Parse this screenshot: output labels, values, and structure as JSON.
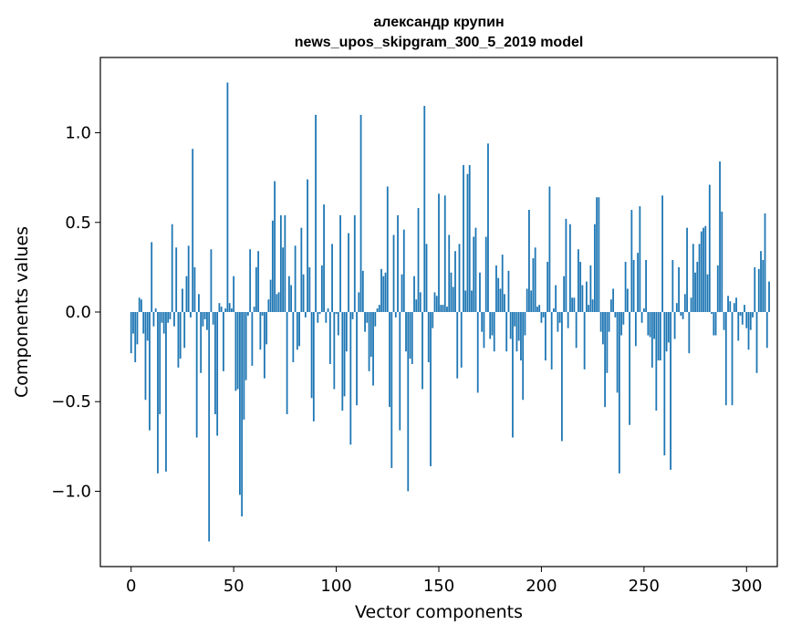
{
  "chart_data": {
    "type": "bar",
    "title_line1": "александр крупин",
    "title_line2": "news_upos_skipgram_300_5_2019 model",
    "xlabel": "Vector components",
    "ylabel": "Components values",
    "xlim": [
      -15,
      315
    ],
    "ylim": [
      -1.42,
      1.42
    ],
    "xticks": [
      0,
      50,
      100,
      150,
      200,
      250,
      300
    ],
    "xtick_labels": [
      "0",
      "50",
      "100",
      "150",
      "200",
      "250",
      "300"
    ],
    "yticks": [
      -1.0,
      -0.5,
      0.0,
      0.5,
      1.0
    ],
    "ytick_labels": [
      "−1.0",
      "−0.5",
      "0.0",
      "0.5",
      "1.0"
    ],
    "bar_color": "#1f77b4",
    "grid": false,
    "values": [
      -0.23,
      -0.12,
      -0.28,
      -0.18,
      0.08,
      0.07,
      -0.12,
      -0.49,
      -0.16,
      -0.66,
      0.39,
      -0.08,
      0.02,
      -0.9,
      -0.57,
      -0.06,
      -0.12,
      -0.89,
      -0.06,
      -0.04,
      0.49,
      -0.08,
      0.36,
      -0.31,
      -0.26,
      0.13,
      -0.2,
      0.2,
      0.37,
      -0.03,
      0.91,
      0.25,
      -0.7,
      0.1,
      -0.34,
      -0.08,
      -0.04,
      -0.1,
      -1.28,
      0.35,
      -0.07,
      -0.57,
      -0.69,
      0.05,
      0.03,
      -0.33,
      0.02,
      1.28,
      0.05,
      0.02,
      0.2,
      -0.44,
      -0.43,
      -1.02,
      -1.14,
      -0.6,
      -0.38,
      -0.02,
      0.35,
      -0.3,
      0.03,
      0.25,
      0.34,
      -0.21,
      -0.02,
      -0.37,
      -0.18,
      0.07,
      0.18,
      0.51,
      0.73,
      0.1,
      0.11,
      0.54,
      0.36,
      0.54,
      -0.57,
      0.2,
      0.15,
      -0.28,
      0.37,
      -0.21,
      -0.19,
      0.47,
      0.21,
      -0.03,
      0.74,
      0.25,
      -0.48,
      -0.61,
      1.1,
      -0.06,
      -0.01,
      0.26,
      0.6,
      -0.06,
      0.02,
      -0.29,
      0.38,
      -0.43,
      -0.01,
      -0.13,
      0.54,
      -0.55,
      -0.47,
      -0.22,
      0.44,
      -0.74,
      -0.04,
      0.54,
      -0.52,
      0.11,
      1.1,
      0.23,
      -0.11,
      -0.06,
      -0.33,
      -0.25,
      -0.41,
      -0.08,
      0.02,
      0.04,
      0.24,
      0.2,
      0.22,
      0.7,
      -0.53,
      -0.87,
      0.43,
      -0.03,
      0.54,
      -0.66,
      0.21,
      0.46,
      -0.22,
      -1.0,
      -0.26,
      -0.29,
      0.2,
      0.07,
      0.58,
      0.11,
      -0.43,
      1.15,
      0.38,
      -0.28,
      -0.86,
      -0.09,
      0.11,
      0.09,
      0.66,
      0.04,
      0.04,
      0.65,
      0.03,
      0.43,
      0.22,
      0.14,
      0.34,
      -0.37,
      0.38,
      -0.31,
      0.82,
      0.12,
      0.77,
      0.82,
      0.12,
      0.42,
      0.47,
      -0.45,
      0.22,
      -0.11,
      -0.2,
      0.42,
      0.94,
      -0.15,
      -0.13,
      -0.22,
      0.26,
      0.19,
      0.13,
      0.32,
      0.1,
      -0.22,
      0.23,
      -0.15,
      -0.7,
      -0.08,
      -0.22,
      -0.16,
      -0.27,
      -0.49,
      -0.13,
      0.13,
      0.57,
      0.12,
      0.3,
      0.36,
      0.03,
      0.04,
      -0.06,
      -0.03,
      -0.27,
      0.28,
      0.7,
      -0.32,
      0.02,
      0.15,
      -0.11,
      -0.06,
      -0.72,
      0.2,
      0.52,
      -0.09,
      0.49,
      0.08,
      0.08,
      -0.2,
      0.35,
      0.28,
      0.15,
      -0.32,
      0.17,
      0.04,
      0.26,
      0.07,
      0.49,
      0.64,
      0.64,
      -0.11,
      -0.18,
      -0.53,
      -0.34,
      -0.11,
      0.07,
      0.13,
      -0.03,
      -0.45,
      -0.9,
      -0.13,
      -0.07,
      0.28,
      0.13,
      -0.63,
      0.57,
      0.29,
      -0.19,
      0.33,
      0.59,
      -0.06,
      0.02,
      0.29,
      -0.13,
      -0.14,
      -0.31,
      -0.15,
      -0.55,
      -0.27,
      -0.27,
      0.65,
      -0.8,
      -0.22,
      -0.17,
      -0.88,
      0.29,
      -0.15,
      0.05,
      0.25,
      -0.02,
      -0.04,
      0.1,
      0.47,
      -0.23,
      0.08,
      0.38,
      0.22,
      0.28,
      0.38,
      0.45,
      0.47,
      0.48,
      0.21,
      0.71,
      -0.01,
      -0.13,
      -0.13,
      0.26,
      0.84,
      0.56,
      -0.1,
      -0.52,
      0.09,
      0.06,
      -0.52,
      0.05,
      0.08,
      -0.16,
      -0.02,
      -0.07,
      0.04,
      -0.09,
      -0.21,
      -0.1,
      -0.03,
      0.25,
      -0.34,
      0.24,
      0.34,
      0.29,
      0.55,
      -0.2,
      0.17
    ]
  }
}
